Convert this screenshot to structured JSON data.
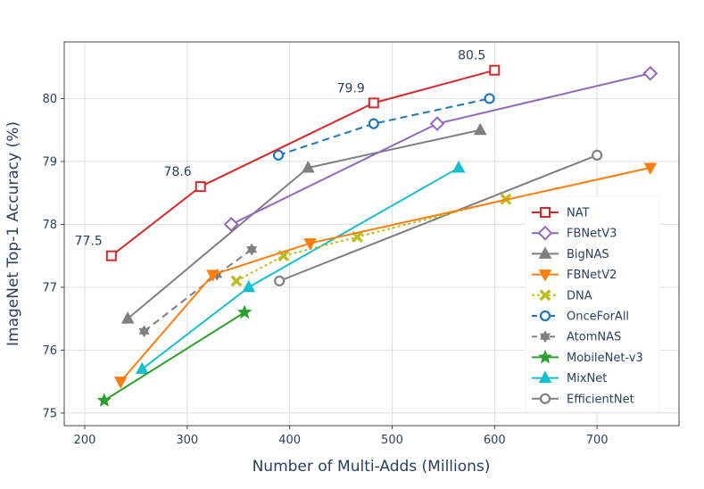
{
  "chart_data": {
    "type": "line",
    "title": "",
    "xlabel": "Number of Multi-Adds (Millions)",
    "ylabel": "ImageNet Top-1 Accuracy (%)",
    "xlim": [
      180,
      780
    ],
    "ylim": [
      74.8,
      80.9
    ],
    "xticks": [
      200,
      300,
      400,
      500,
      600,
      700
    ],
    "yticks": [
      75,
      76,
      77,
      78,
      79,
      80
    ],
    "grid": true,
    "legend_position": "bottom-right",
    "annotations": [
      {
        "text": "77.5",
        "x": 226,
        "y": 77.5
      },
      {
        "text": "78.6",
        "x": 313,
        "y": 78.6
      },
      {
        "text": "79.9",
        "x": 482,
        "y": 79.93
      },
      {
        "text": "80.5",
        "x": 600,
        "y": 80.45
      }
    ],
    "series": [
      {
        "name": "NAT",
        "color": "#d62728",
        "marker": "square-open",
        "dash": "solid",
        "x": [
          226,
          313,
          482,
          600
        ],
        "y": [
          77.5,
          78.6,
          79.93,
          80.45
        ]
      },
      {
        "name": "FBNetV3",
        "color": "#9467bd",
        "marker": "diamond-open",
        "dash": "solid",
        "x": [
          343,
          544,
          752
        ],
        "y": [
          78.0,
          79.6,
          80.4
        ]
      },
      {
        "name": "BigNAS",
        "color": "#7f7f7f",
        "marker": "triangle-up",
        "dash": "solid",
        "x": [
          242,
          418,
          586
        ],
        "y": [
          76.5,
          78.9,
          79.5
        ]
      },
      {
        "name": "FBNetV2",
        "color": "#ff7f0e",
        "marker": "triangle-down",
        "dash": "solid",
        "x": [
          235,
          325,
          420,
          752
        ],
        "y": [
          75.5,
          77.2,
          77.7,
          78.9
        ]
      },
      {
        "name": "DNA",
        "color": "#bcbd22",
        "marker": "x-thin",
        "dash": "dot",
        "x": [
          348,
          394,
          466,
          611
        ],
        "y": [
          77.1,
          77.5,
          77.8,
          78.4
        ]
      },
      {
        "name": "OnceForAll",
        "color": "#1f77b4",
        "marker": "circle-open",
        "dash": "dash",
        "x": [
          389,
          482,
          595
        ],
        "y": [
          79.1,
          79.6,
          80.0
        ]
      },
      {
        "name": "AtomNAS",
        "color": "#7f7f7f",
        "marker": "hexagram",
        "dash": "dash",
        "x": [
          258,
          329,
          363
        ],
        "y": [
          76.3,
          77.2,
          77.6
        ]
      },
      {
        "name": "MobileNet-v3",
        "color": "#2ca02c",
        "marker": "star",
        "dash": "solid",
        "x": [
          219,
          356
        ],
        "y": [
          75.2,
          76.6
        ]
      },
      {
        "name": "MixNet",
        "color": "#17becf",
        "marker": "triangle-up",
        "dash": "solid",
        "x": [
          256,
          360,
          565
        ],
        "y": [
          75.7,
          77.0,
          78.9
        ]
      },
      {
        "name": "EfficientNet",
        "color": "#7f7f7f",
        "marker": "circle-open",
        "dash": "solid",
        "x": [
          390,
          700
        ],
        "y": [
          77.1,
          79.1
        ]
      }
    ]
  }
}
